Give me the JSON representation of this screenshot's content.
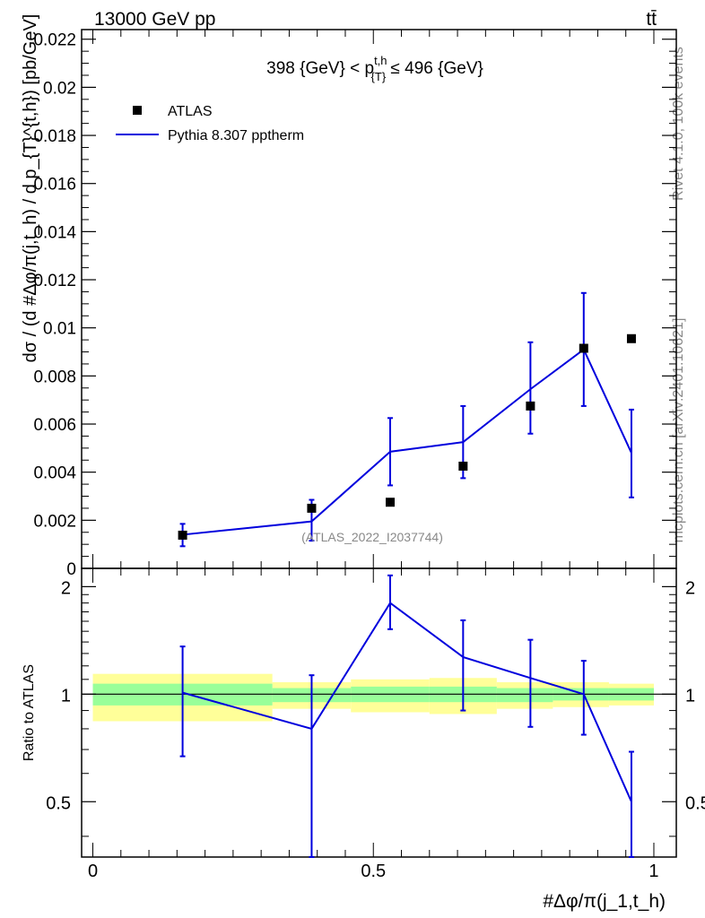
{
  "header": {
    "left_label": "13000 GeV pp",
    "right_label": "tt̄"
  },
  "side_labels": {
    "rivet": "Rivet 4.1.0,  100k events",
    "mcplots": "mcplots.cern.ch [arXiv:2401.10621]"
  },
  "watermark": "(ATLAS_2022_I2037744)",
  "colors": {
    "data": "#000000",
    "mc": "#0000dd",
    "band_inner": "#99ff99",
    "band_outer": "#ffff99"
  },
  "chart_data": [
    {
      "type": "scatter",
      "panel": "main",
      "title": "398 {GeV} < p_{T}^{t,h} ≤ 496 {GeV}",
      "ylabel": "dσ / (d #Δφ/π(j,t_h) / d p_{T}^{t,h}) [pb/GeV]",
      "xlim": [
        -0.02,
        1.04
      ],
      "ylim": [
        0,
        0.0224
      ],
      "yticks": [
        0,
        0.002,
        0.004,
        0.006,
        0.008,
        0.01,
        0.012,
        0.014,
        0.016,
        0.018,
        0.02,
        0.022
      ],
      "ytick_labels": [
        "0",
        "0.002",
        "0.004",
        "0.006",
        "0.008",
        "0.01",
        "0.012",
        "0.014",
        "0.016",
        "0.018",
        "0.02",
        "0.022"
      ],
      "legend": {
        "data": "ATLAS",
        "mc": "Pythia 8.307 pptherm"
      },
      "series": [
        {
          "name": "ATLAS",
          "x": [
            0.16,
            0.39,
            0.53,
            0.66,
            0.78,
            0.875,
            0.96
          ],
          "y": [
            0.00138,
            0.0025,
            0.00275,
            0.00425,
            0.00675,
            0.00915,
            0.00955
          ]
        },
        {
          "name": "Pythia 8.307 pptherm",
          "x": [
            0.16,
            0.39,
            0.53,
            0.66,
            0.78,
            0.875,
            0.96
          ],
          "y": [
            0.0014,
            0.00195,
            0.00485,
            0.00525,
            0.00745,
            0.0091,
            0.0048
          ],
          "yerr_low": [
            0.00048,
            0.0008,
            0.0014,
            0.0015,
            0.00185,
            0.00235,
            0.00185
          ],
          "yerr_high": [
            0.00045,
            0.0009,
            0.0014,
            0.0015,
            0.00195,
            0.00235,
            0.0018
          ]
        }
      ]
    },
    {
      "type": "line",
      "panel": "ratio",
      "ylabel": "Ratio to ATLAS",
      "xlabel": "#Δφ/π(j_1,t_h)",
      "xlim": [
        -0.02,
        1.04
      ],
      "ylim": [
        0.35,
        2.25
      ],
      "xticks": [
        0,
        0.5,
        1
      ],
      "xtick_labels": [
        "0",
        "0.5",
        "1"
      ],
      "yticks": [
        0.5,
        1,
        2
      ],
      "ytick_labels": [
        "0.5",
        "1",
        "2"
      ],
      "bands": [
        {
          "x_low": 0.0,
          "x_high": 0.32,
          "inner": [
            0.93,
            1.07
          ],
          "outer": [
            0.84,
            1.14
          ]
        },
        {
          "x_low": 0.32,
          "x_high": 0.46,
          "inner": [
            0.95,
            1.04
          ],
          "outer": [
            0.91,
            1.08
          ]
        },
        {
          "x_low": 0.46,
          "x_high": 0.6,
          "inner": [
            0.95,
            1.05
          ],
          "outer": [
            0.89,
            1.1
          ]
        },
        {
          "x_low": 0.6,
          "x_high": 0.72,
          "inner": [
            0.95,
            1.05
          ],
          "outer": [
            0.88,
            1.11
          ]
        },
        {
          "x_low": 0.72,
          "x_high": 0.82,
          "inner": [
            0.95,
            1.04
          ],
          "outer": [
            0.91,
            1.08
          ]
        },
        {
          "x_low": 0.82,
          "x_high": 0.92,
          "inner": [
            0.96,
            1.04
          ],
          "outer": [
            0.92,
            1.08
          ]
        },
        {
          "x_low": 0.92,
          "x_high": 1.0,
          "inner": [
            0.96,
            1.04
          ],
          "outer": [
            0.93,
            1.07
          ]
        }
      ],
      "series": [
        {
          "name": "Pythia 8.307 pptherm / ATLAS",
          "x": [
            0.16,
            0.39,
            0.53,
            0.66,
            0.78,
            0.875,
            0.96
          ],
          "y": [
            1.01,
            0.8,
            1.8,
            1.27,
            1.11,
            1.0,
            0.5
          ],
          "yerr_low": [
            0.34,
            0.45,
            0.28,
            0.37,
            0.3,
            0.23,
            0.18
          ],
          "yerr_high": [
            0.35,
            0.33,
            0.35,
            0.34,
            0.31,
            0.24,
            0.19
          ]
        }
      ]
    }
  ]
}
